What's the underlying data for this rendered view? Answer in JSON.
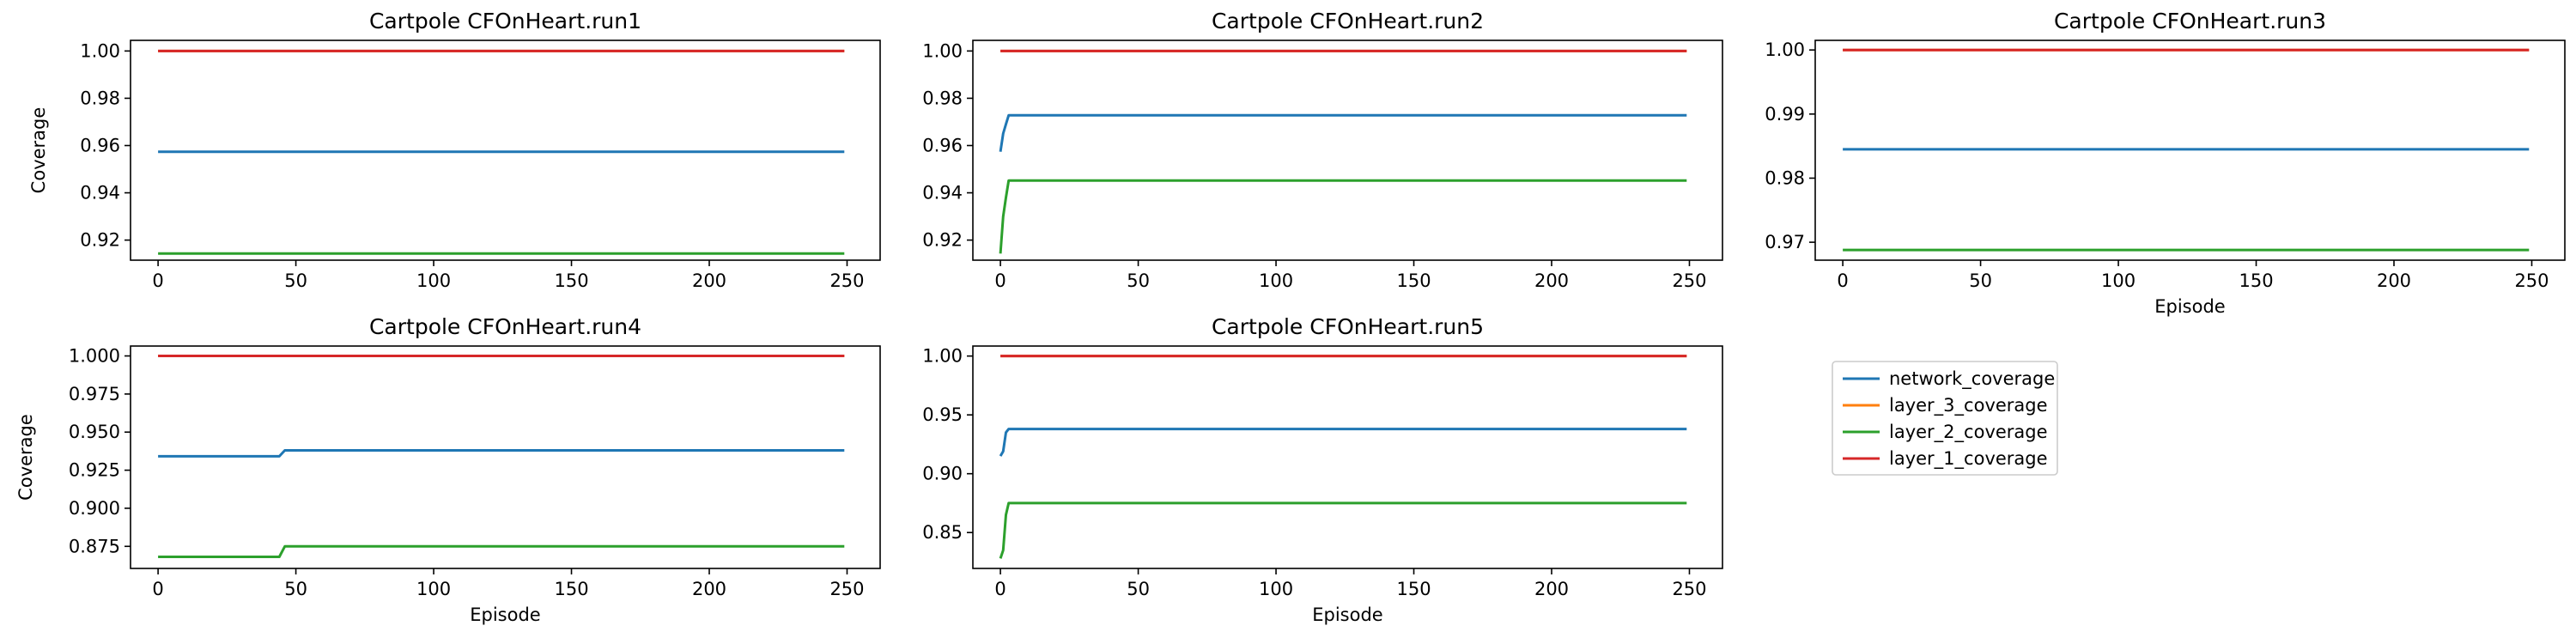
{
  "legend": {
    "entries": [
      {
        "name": "network_coverage",
        "color": "#1f77b4"
      },
      {
        "name": "layer_3_coverage",
        "color": "#ff7f0e"
      },
      {
        "name": "layer_2_coverage",
        "color": "#2ca02c"
      },
      {
        "name": "layer_1_coverage",
        "color": "#d62728"
      }
    ],
    "placement": "empty bottom-right panel, upper-left"
  },
  "chart_data": [
    {
      "type": "line",
      "title": "Cartpole CFOnHeart.run1",
      "xlabel": "",
      "ylabel": "Coverage",
      "xlim": [
        -10,
        262
      ],
      "ylim": [
        0.9115,
        1.0045
      ],
      "xticks": [
        0,
        50,
        100,
        150,
        200,
        250
      ],
      "xtick_labels": [
        "0",
        "50",
        "100",
        "150",
        "200",
        "250"
      ],
      "yticks": [
        0.92,
        0.94,
        0.96,
        0.98,
        1.0
      ],
      "ytick_labels": [
        "0.92",
        "0.94",
        "0.96",
        "0.98",
        "1.00"
      ],
      "grid": false,
      "series": [
        {
          "name": "network_coverage",
          "color": "#1f77b4",
          "points": [
            [
              0,
              0.9574
            ],
            [
              249,
              0.9574
            ]
          ]
        },
        {
          "name": "layer_3_coverage",
          "color": "#ff7f0e",
          "points": [
            [
              0,
              1.0
            ],
            [
              249,
              1.0
            ]
          ]
        },
        {
          "name": "layer_2_coverage",
          "color": "#2ca02c",
          "points": [
            [
              0,
              0.9143
            ],
            [
              249,
              0.9143
            ]
          ]
        },
        {
          "name": "layer_1_coverage",
          "color": "#d62728",
          "points": [
            [
              0,
              1.0
            ],
            [
              249,
              1.0
            ]
          ]
        }
      ]
    },
    {
      "type": "line",
      "title": "Cartpole CFOnHeart.run2",
      "xlabel": "",
      "ylabel": "",
      "xlim": [
        -10,
        262
      ],
      "ylim": [
        0.9115,
        1.0045
      ],
      "xticks": [
        0,
        50,
        100,
        150,
        200,
        250
      ],
      "xtick_labels": [
        "0",
        "50",
        "100",
        "150",
        "200",
        "250"
      ],
      "yticks": [
        0.92,
        0.94,
        0.96,
        0.98,
        1.0
      ],
      "ytick_labels": [
        "0.92",
        "0.94",
        "0.96",
        "0.98",
        "1.00"
      ],
      "grid": false,
      "series": [
        {
          "name": "network_coverage",
          "color": "#1f77b4",
          "points": [
            [
              0,
              0.9574
            ],
            [
              1,
              0.9651
            ],
            [
              2,
              0.969
            ],
            [
              3,
              0.9728
            ],
            [
              249,
              0.9728
            ]
          ]
        },
        {
          "name": "layer_3_coverage",
          "color": "#ff7f0e",
          "points": [
            [
              0,
              1.0
            ],
            [
              249,
              1.0
            ]
          ]
        },
        {
          "name": "layer_2_coverage",
          "color": "#2ca02c",
          "points": [
            [
              0,
              0.9143
            ],
            [
              1,
              0.93
            ],
            [
              2,
              0.938
            ],
            [
              3,
              0.9452
            ],
            [
              249,
              0.9452
            ]
          ]
        },
        {
          "name": "layer_1_coverage",
          "color": "#d62728",
          "points": [
            [
              0,
              1.0
            ],
            [
              249,
              1.0
            ]
          ]
        }
      ]
    },
    {
      "type": "line",
      "title": "Cartpole CFOnHeart.run3",
      "xlabel": "Episode",
      "ylabel": "",
      "xlim": [
        -10,
        262
      ],
      "ylim": [
        0.9672,
        1.0015
      ],
      "xticks": [
        0,
        50,
        100,
        150,
        200,
        250
      ],
      "xtick_labels": [
        "0",
        "50",
        "100",
        "150",
        "200",
        "250"
      ],
      "yticks": [
        0.97,
        0.98,
        0.99,
        1.0
      ],
      "ytick_labels": [
        "0.97",
        "0.98",
        "0.99",
        "1.00"
      ],
      "grid": false,
      "series": [
        {
          "name": "network_coverage",
          "color": "#1f77b4",
          "points": [
            [
              0,
              0.9845
            ],
            [
              249,
              0.9845
            ]
          ]
        },
        {
          "name": "layer_3_coverage",
          "color": "#ff7f0e",
          "points": [
            [
              0,
              1.0
            ],
            [
              249,
              1.0
            ]
          ]
        },
        {
          "name": "layer_2_coverage",
          "color": "#2ca02c",
          "points": [
            [
              0,
              0.9688
            ],
            [
              249,
              0.9688
            ]
          ]
        },
        {
          "name": "layer_1_coverage",
          "color": "#d62728",
          "points": [
            [
              0,
              1.0
            ],
            [
              249,
              1.0
            ]
          ]
        }
      ]
    },
    {
      "type": "line",
      "title": "Cartpole CFOnHeart.run4",
      "xlabel": "Episode",
      "ylabel": "Coverage",
      "xlim": [
        -10,
        262
      ],
      "ylim": [
        0.8605,
        1.0065
      ],
      "xticks": [
        0,
        50,
        100,
        150,
        200,
        250
      ],
      "xtick_labels": [
        "0",
        "50",
        "100",
        "150",
        "200",
        "250"
      ],
      "yticks": [
        0.875,
        0.9,
        0.925,
        0.95,
        0.975,
        1.0
      ],
      "ytick_labels": [
        "0.875",
        "0.900",
        "0.925",
        "0.950",
        "0.975",
        "1.000"
      ],
      "grid": false,
      "series": [
        {
          "name": "network_coverage",
          "color": "#1f77b4",
          "points": [
            [
              0,
              0.9341
            ],
            [
              44,
              0.9341
            ],
            [
              46,
              0.938
            ],
            [
              249,
              0.938
            ]
          ]
        },
        {
          "name": "layer_3_coverage",
          "color": "#ff7f0e",
          "points": [
            [
              0,
              1.0
            ],
            [
              249,
              1.0
            ]
          ]
        },
        {
          "name": "layer_2_coverage",
          "color": "#2ca02c",
          "points": [
            [
              0,
              0.8681
            ],
            [
              44,
              0.8681
            ],
            [
              46,
              0.875
            ],
            [
              249,
              0.875
            ]
          ]
        },
        {
          "name": "layer_1_coverage",
          "color": "#d62728",
          "points": [
            [
              0,
              1.0
            ],
            [
              249,
              1.0
            ]
          ]
        }
      ]
    },
    {
      "type": "line",
      "title": "Cartpole CFOnHeart.run5",
      "xlabel": "Episode",
      "ylabel": "",
      "xlim": [
        -10,
        262
      ],
      "ylim": [
        0.8195,
        1.0085
      ],
      "xticks": [
        0,
        50,
        100,
        150,
        200,
        250
      ],
      "xtick_labels": [
        "0",
        "50",
        "100",
        "150",
        "200",
        "250"
      ],
      "yticks": [
        0.85,
        0.9,
        0.95,
        1.0
      ],
      "ytick_labels": [
        "0.85",
        "0.90",
        "0.95",
        "1.00"
      ],
      "grid": false,
      "series": [
        {
          "name": "network_coverage",
          "color": "#1f77b4",
          "points": [
            [
              0,
              0.915
            ],
            [
              1,
              0.919
            ],
            [
              2,
              0.935
            ],
            [
              3,
              0.938
            ],
            [
              249,
              0.938
            ]
          ]
        },
        {
          "name": "layer_3_coverage",
          "color": "#ff7f0e",
          "points": [
            [
              0,
              1.0
            ],
            [
              249,
              1.0
            ]
          ]
        },
        {
          "name": "layer_2_coverage",
          "color": "#2ca02c",
          "points": [
            [
              0,
              0.828
            ],
            [
              1,
              0.835
            ],
            [
              2,
              0.865
            ],
            [
              3,
              0.875
            ],
            [
              249,
              0.875
            ]
          ]
        },
        {
          "name": "layer_1_coverage",
          "color": "#d62728",
          "points": [
            [
              0,
              1.0
            ],
            [
              249,
              1.0
            ]
          ]
        }
      ]
    }
  ]
}
